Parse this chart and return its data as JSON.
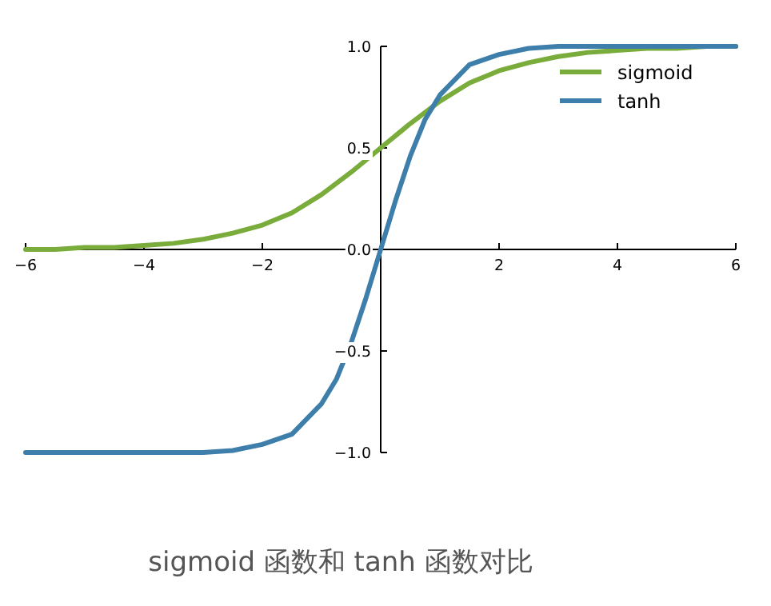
{
  "chart_data": {
    "type": "line",
    "series": [
      {
        "name": "sigmoid",
        "color": "#7aac3c",
        "x": [
          -6,
          -5.5,
          -5,
          -4.5,
          -4,
          -3.5,
          -3,
          -2.5,
          -2,
          -1.5,
          -1,
          -0.5,
          0,
          0.5,
          1,
          1.5,
          2,
          2.5,
          3,
          3.5,
          4,
          4.5,
          5,
          5.5,
          6
        ],
        "values": [
          0,
          0,
          0.01,
          0.01,
          0.02,
          0.03,
          0.05,
          0.08,
          0.12,
          0.18,
          0.27,
          0.38,
          0.5,
          0.62,
          0.73,
          0.82,
          0.88,
          0.92,
          0.95,
          0.97,
          0.98,
          0.99,
          0.99,
          1,
          1
        ]
      },
      {
        "name": "tanh",
        "color": "#3d7eaa",
        "x": [
          -6,
          -5,
          -4,
          -3,
          -2.5,
          -2,
          -1.5,
          -1,
          -0.75,
          -0.5,
          -0.25,
          0,
          0.25,
          0.5,
          0.75,
          1,
          1.5,
          2,
          2.5,
          3,
          4,
          5,
          6
        ],
        "values": [
          -1,
          -1,
          -1,
          -1,
          -0.99,
          -0.96,
          -0.91,
          -0.76,
          -0.64,
          -0.46,
          -0.24,
          0,
          0.24,
          0.46,
          0.64,
          0.76,
          0.91,
          0.96,
          0.99,
          1,
          1,
          1,
          1
        ]
      }
    ],
    "xlim": [
      -6,
      6
    ],
    "ylim": [
      -1,
      1
    ],
    "xticks": [
      -6,
      -4,
      -2,
      {
        "value": 0,
        "label": null
      },
      2,
      4,
      6
    ],
    "yticks": [
      {
        "value": -1,
        "label": "−1.0"
      },
      {
        "value": -0.5,
        "label": "−0.5"
      },
      {
        "value": 0,
        "label": "0.0"
      },
      {
        "value": 0.5,
        "label": "0.5"
      },
      {
        "value": 1,
        "label": "1.0"
      }
    ],
    "legend": "top right",
    "annotations": [
      "sigmoid 函数和 tanh 函数对比"
    ]
  }
}
